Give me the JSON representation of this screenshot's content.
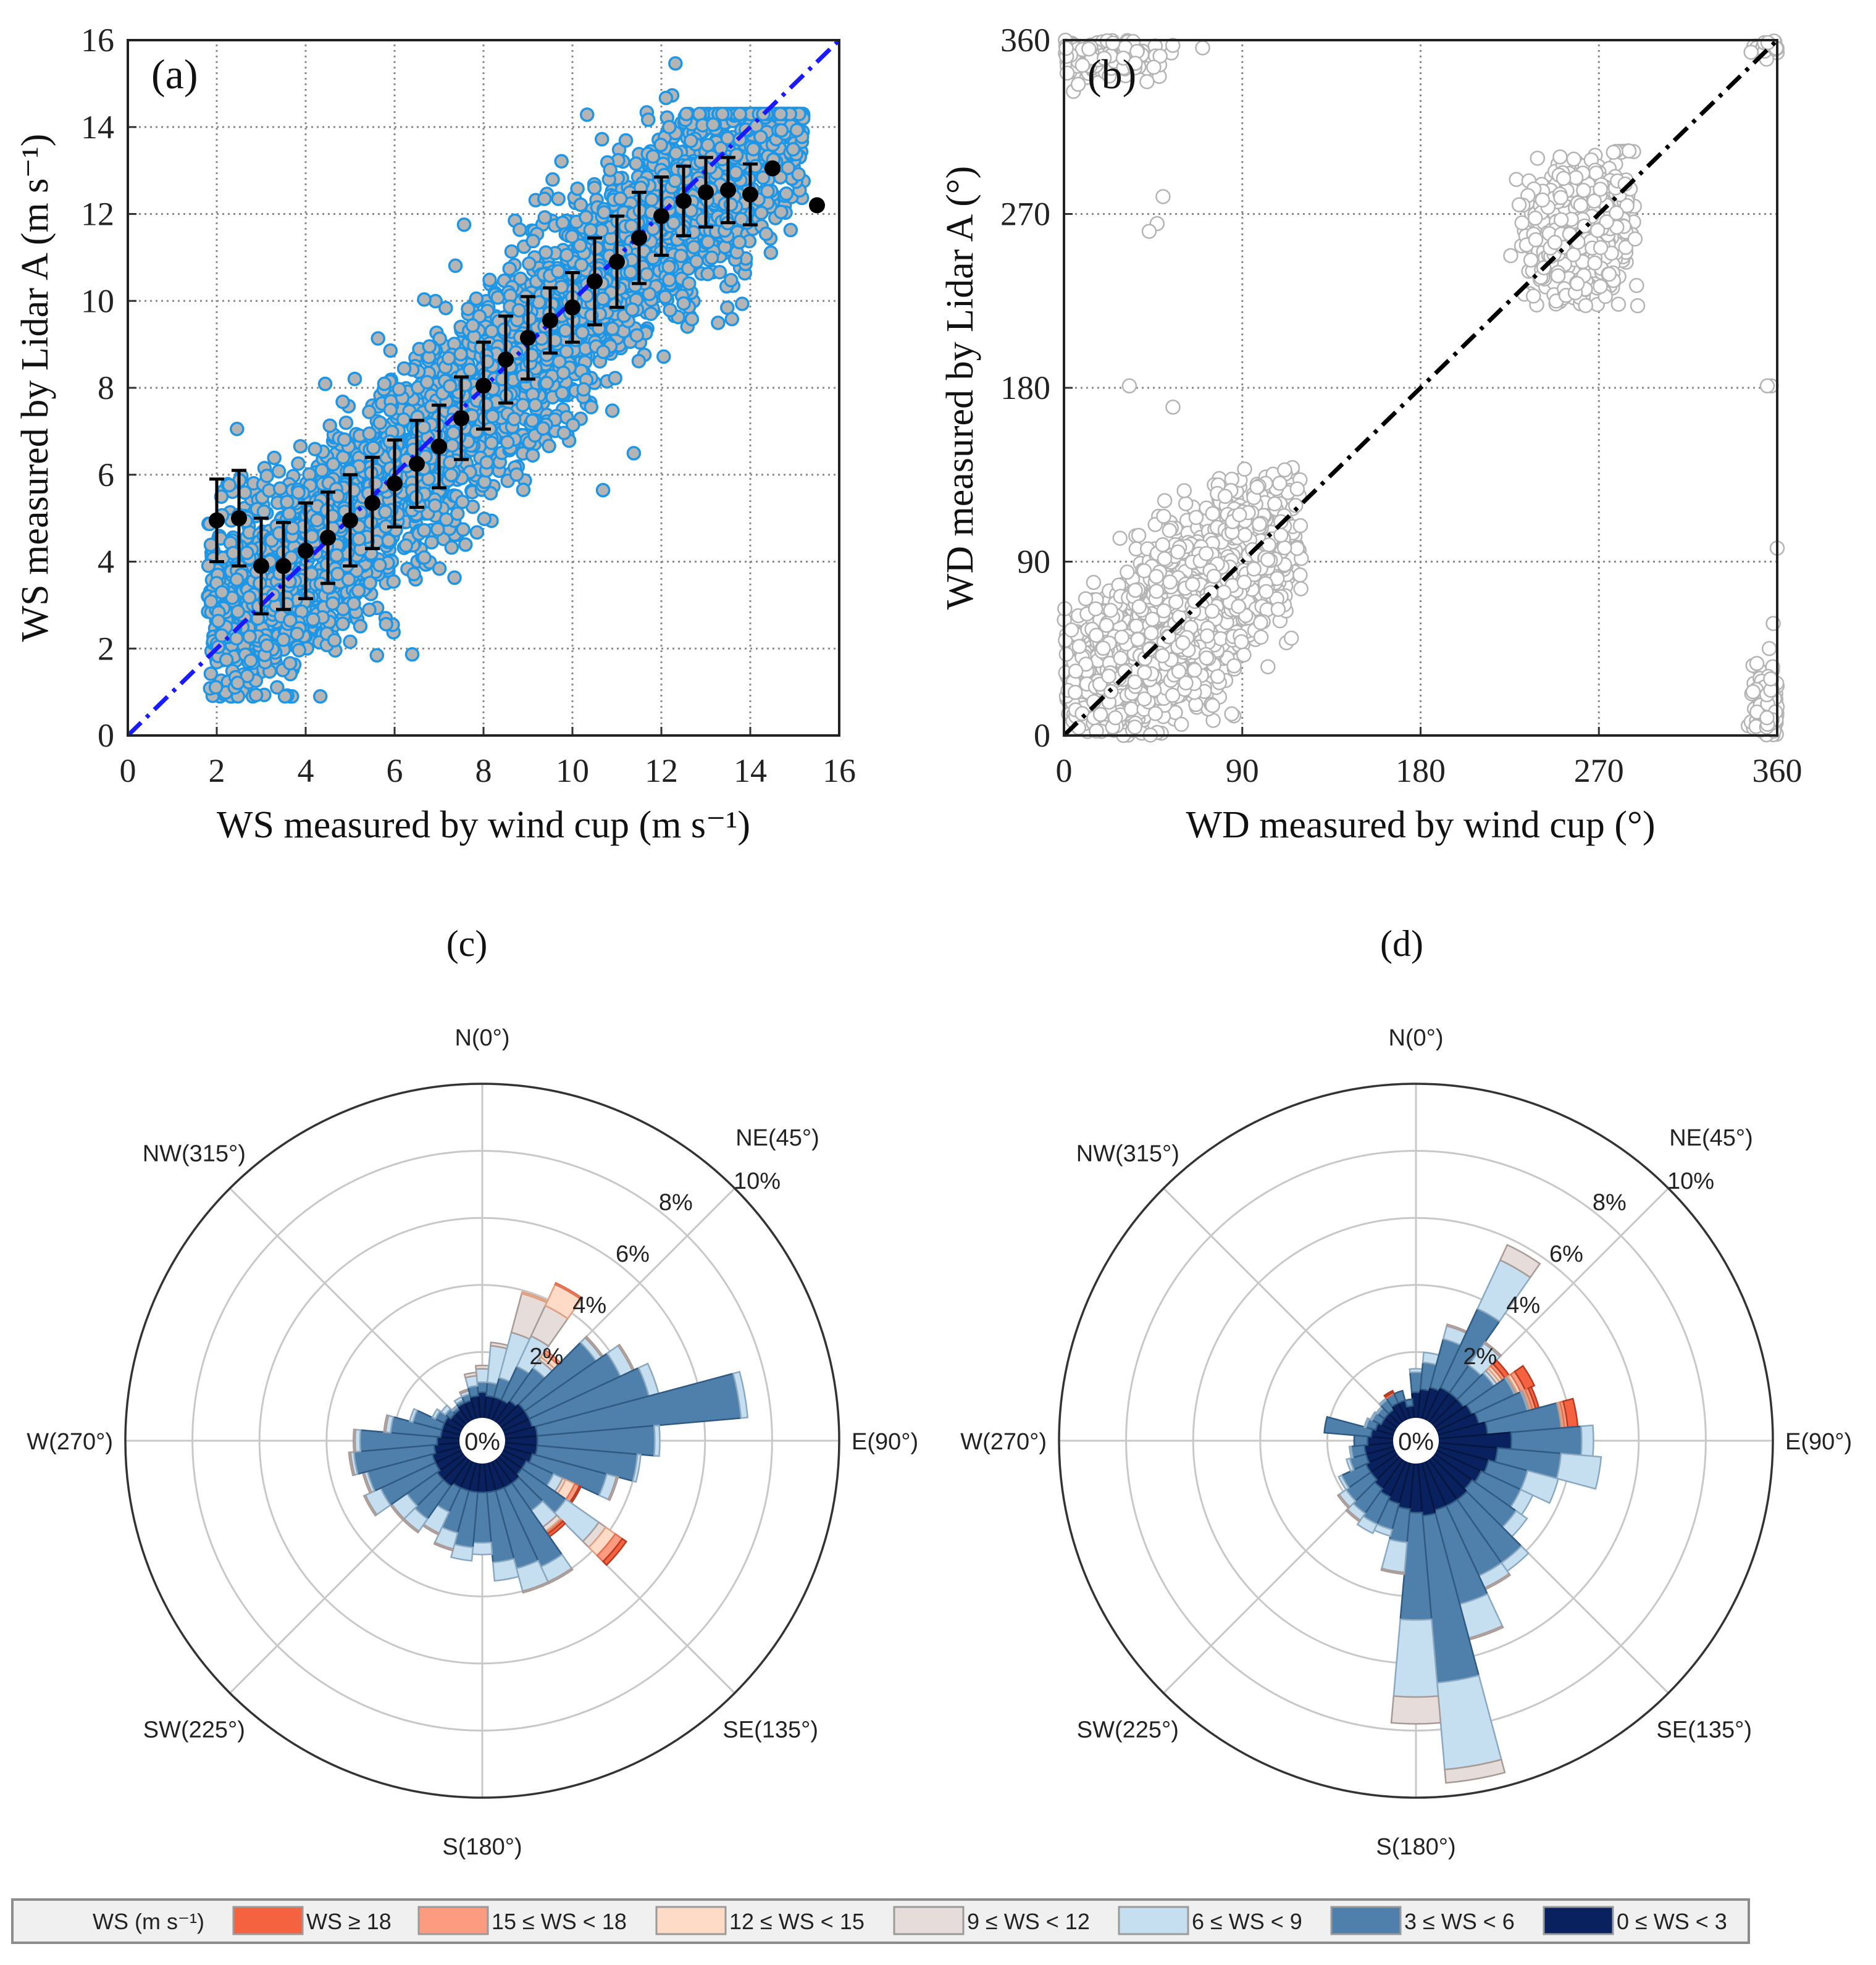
{
  "chart_data": [
    {
      "panel": "(a)",
      "type": "scatter",
      "xlabel": "WS measured by wind cup (m s⁻¹)",
      "ylabel": "WS measured by Lidar A (m s⁻¹)",
      "xlim": [
        0,
        16
      ],
      "ylim": [
        0,
        16
      ],
      "xticks": [
        "0",
        "2",
        "4",
        "6",
        "8",
        "10",
        "12",
        "14",
        "16"
      ],
      "yticks": [
        "0",
        "2",
        "4",
        "6",
        "8",
        "10",
        "12",
        "14",
        "16"
      ],
      "grid": true,
      "reference_line": {
        "name": "1:1 line",
        "x": [
          0,
          16
        ],
        "y": [
          0,
          16
        ],
        "color": "#1a1aff"
      },
      "point_color": {
        "fill": "#b4b4b4",
        "edge": "#1e96e6"
      },
      "cloud": {
        "x_range": [
          1.8,
          15.2
        ],
        "slope": 0.97,
        "intercept": 0.1,
        "y_sd": 1.15,
        "n": 4200
      },
      "binned_means": {
        "x": [
          2,
          2.5,
          3,
          3.5,
          4,
          4.5,
          5,
          5.5,
          6,
          6.5,
          7,
          7.5,
          8,
          8.5,
          9,
          9.5,
          10,
          10.5,
          11,
          11.5,
          12,
          12.5,
          13,
          13.5,
          14,
          14.5,
          15.5
        ],
        "y": [
          4.95,
          5.0,
          3.9,
          3.9,
          4.25,
          4.55,
          4.95,
          5.35,
          5.8,
          6.25,
          6.65,
          7.3,
          8.05,
          8.65,
          9.15,
          9.55,
          9.85,
          10.45,
          10.9,
          11.45,
          11.95,
          12.3,
          12.5,
          12.55,
          12.45,
          13.05,
          12.2
        ],
        "err": [
          0.95,
          1.1,
          1.1,
          1.0,
          1.1,
          1.05,
          1.05,
          1.05,
          1.0,
          1.0,
          0.95,
          0.95,
          1.0,
          1.0,
          0.95,
          0.75,
          0.8,
          1.0,
          1.05,
          1.05,
          0.9,
          0.8,
          0.8,
          0.75,
          0.7,
          0,
          0
        ]
      }
    },
    {
      "panel": "(b)",
      "type": "scatter",
      "xlabel": "WD measured by wind cup (°)",
      "ylabel": "WD measured by Lidar A (°)",
      "xlim": [
        0,
        360
      ],
      "ylim": [
        0,
        360
      ],
      "xticks": [
        "0",
        "90",
        "180",
        "270",
        "360"
      ],
      "yticks": [
        "0",
        "90",
        "180",
        "270",
        "360"
      ],
      "grid": true,
      "reference_line": {
        "name": "1:1 line",
        "x": [
          0,
          360
        ],
        "y": [
          0,
          360
        ],
        "color": "#000000"
      },
      "point_color": {
        "fill": "#ffffff",
        "edge": "#b4b4b4"
      },
      "clusters": [
        {
          "cx": 55,
          "cy": 60,
          "sx": 30,
          "sy": 32,
          "corr": 0.75,
          "n": 2600,
          "xmin": 0,
          "xmax": 120,
          "ymin": 0,
          "ymax": 140
        },
        {
          "cx": 262,
          "cy": 262,
          "sx": 14,
          "sy": 20,
          "corr": 0.2,
          "n": 700,
          "xmin": 225,
          "xmax": 290,
          "ymin": 222,
          "ymax": 305
        },
        {
          "cx": 356,
          "cy": 14,
          "sx": 4,
          "sy": 10,
          "corr": 0,
          "n": 200,
          "xmin": 335,
          "xmax": 360,
          "ymin": 0,
          "ymax": 40
        },
        {
          "cx": 18,
          "cy": 352,
          "sx": 15,
          "sy": 6,
          "corr": 0,
          "n": 200,
          "xmin": 0,
          "xmax": 70,
          "ymin": 330,
          "ymax": 360
        },
        {
          "cx": 356,
          "cy": 357,
          "sx": 4,
          "sy": 3,
          "corr": 0,
          "n": 40,
          "xmin": 340,
          "xmax": 360,
          "ymin": 345,
          "ymax": 360
        }
      ],
      "outliers": [
        [
          33,
          181
        ],
        [
          55,
          170
        ],
        [
          50,
          279
        ],
        [
          47,
          265
        ],
        [
          43,
          261
        ],
        [
          357,
          181
        ],
        [
          355,
          181
        ],
        [
          360,
          97
        ],
        [
          358,
          58
        ],
        [
          356,
          45
        ],
        [
          36,
          348
        ],
        [
          70,
          356
        ]
      ]
    },
    {
      "panel": "(c)",
      "type": "windrose",
      "radial_max": 10,
      "radial_ticks": [
        "2%",
        "4%",
        "6%",
        "8%",
        "10%"
      ],
      "center_label": "0%",
      "direction_labels": [
        {
          "angle": 0,
          "label": "N(0°)"
        },
        {
          "angle": 45,
          "label": "NE(45°)"
        },
        {
          "angle": 90,
          "label": "E(90°)"
        },
        {
          "angle": 135,
          "label": "SE(135°)"
        },
        {
          "angle": 180,
          "label": "S(180°)"
        },
        {
          "angle": 225,
          "label": "SW(225°)"
        },
        {
          "angle": 270,
          "label": "W(270°)"
        },
        {
          "angle": 315,
          "label": "NW(315°)"
        }
      ],
      "sector_width_deg": 10,
      "sectors": [
        0,
        10,
        20,
        30,
        40,
        50,
        60,
        70,
        80,
        90,
        100,
        110,
        120,
        130,
        140,
        150,
        160,
        170,
        180,
        190,
        200,
        210,
        220,
        230,
        240,
        250,
        260,
        270,
        280,
        290,
        300,
        310,
        320,
        330,
        340,
        350
      ],
      "class_order": [
        "0 ≤ WS < 3",
        "3 ≤ WS < 6",
        "6 ≤ WS < 9",
        "9 ≤ WS < 12",
        "12 ≤ WS < 15",
        "15 ≤ WS < 18",
        "WS ≥ 18"
      ],
      "frequency_percent": [
        [
          0.8,
          0.3,
          0.4,
          0.1,
          0,
          0,
          0
        ],
        [
          0.7,
          0.4,
          1.1,
          0.1,
          0,
          0,
          0
        ],
        [
          0.7,
          0.6,
          1.4,
          1.2,
          0.05,
          0,
          0
        ],
        [
          0.7,
          1.1,
          1.0,
          1.0,
          0.7,
          0.05,
          0
        ],
        [
          0.8,
          1.2,
          0.3,
          0.1,
          0.15,
          0.1,
          0
        ],
        [
          0.9,
          2.6,
          0.2,
          0.05,
          0,
          0,
          0
        ],
        [
          0.9,
          3.0,
          0.4,
          0.05,
          0,
          0,
          0
        ],
        [
          0.9,
          3.6,
          0.3,
          0,
          0,
          0,
          0
        ],
        [
          1.0,
          6.1,
          0.2,
          0,
          0,
          0,
          0
        ],
        [
          1.0,
          3.5,
          0.15,
          0,
          0,
          0,
          0
        ],
        [
          1.0,
          3.0,
          0.1,
          0,
          0,
          0,
          0
        ],
        [
          0.9,
          2.3,
          0.3,
          0.05,
          0,
          0,
          0
        ],
        [
          0.8,
          0.9,
          0.3,
          0.1,
          0.3,
          0.15,
          0.05
        ],
        [
          0.8,
          1.6,
          1.2,
          0.25,
          0.35,
          0.25,
          0.15
        ],
        [
          0.9,
          1.0,
          0.6,
          0.15,
          0.05,
          0.05,
          0.1
        ],
        [
          0.9,
          2.6,
          0.5,
          0.05,
          0,
          0,
          0
        ],
        [
          0.9,
          2.4,
          0.7,
          0.05,
          0,
          0,
          0
        ],
        [
          0.9,
          2.1,
          0.55,
          0,
          0,
          0,
          0
        ],
        [
          0.9,
          1.5,
          0.35,
          0,
          0,
          0,
          0
        ],
        [
          0.9,
          1.65,
          0.4,
          0,
          0,
          0,
          0
        ],
        [
          0.9,
          1.3,
          0.5,
          0.05,
          0,
          0,
          0
        ],
        [
          0.9,
          0.8,
          0.7,
          0.05,
          0,
          0,
          0
        ],
        [
          1.0,
          1.2,
          0.45,
          0.05,
          0,
          0,
          0
        ],
        [
          1.0,
          1.1,
          0.55,
          0.05,
          0,
          0,
          0
        ],
        [
          0.9,
          1.8,
          0.5,
          0.05,
          0,
          0,
          0
        ],
        [
          0.9,
          2.0,
          0.1,
          0.05,
          0,
          0,
          0
        ],
        [
          0.8,
          2.4,
          0.1,
          0.05,
          0,
          0,
          0
        ],
        [
          0.7,
          2.3,
          0.15,
          0.05,
          0,
          0,
          0
        ],
        [
          0.6,
          1.5,
          0.15,
          0.05,
          0,
          0,
          0
        ],
        [
          0.6,
          0.9,
          0.1,
          0,
          0,
          0,
          0
        ],
        [
          0.6,
          0.3,
          0.1,
          0,
          0,
          0,
          0
        ],
        [
          0.5,
          0.2,
          0.15,
          0,
          0,
          0,
          0
        ],
        [
          0.5,
          0.1,
          0.05,
          0,
          0,
          0,
          0
        ],
        [
          0.6,
          0.1,
          0.1,
          0,
          0,
          0,
          0
        ],
        [
          0.6,
          0.2,
          0.1,
          0.05,
          0,
          0,
          0
        ],
        [
          0.7,
          0.3,
          0.3,
          0.1,
          0,
          0,
          0
        ]
      ]
    },
    {
      "panel": "(d)",
      "type": "windrose",
      "radial_max": 10,
      "radial_ticks": [
        "2%",
        "4%",
        "6%",
        "8%",
        "10%"
      ],
      "center_label": "0%",
      "direction_labels": [
        {
          "angle": 0,
          "label": "N(0°)"
        },
        {
          "angle": 45,
          "label": "NE(45°)"
        },
        {
          "angle": 90,
          "label": "E(90°)"
        },
        {
          "angle": 135,
          "label": "SE(135°)"
        },
        {
          "angle": 180,
          "label": "S(180°)"
        },
        {
          "angle": 225,
          "label": "SW(225°)"
        },
        {
          "angle": 270,
          "label": "W(270°)"
        },
        {
          "angle": 315,
          "label": "NW(315°)"
        }
      ],
      "sector_width_deg": 10,
      "sectors": [
        0,
        10,
        20,
        30,
        40,
        50,
        60,
        70,
        80,
        90,
        100,
        110,
        120,
        130,
        140,
        150,
        160,
        170,
        180,
        190,
        200,
        210,
        220,
        230,
        240,
        250,
        260,
        270,
        280,
        290,
        300,
        310,
        320,
        330,
        340,
        350
      ],
      "class_order": [
        "0 ≤ WS < 3",
        "3 ≤ WS < 6",
        "6 ≤ WS < 9",
        "9 ≤ WS < 12",
        "12 ≤ WS < 15",
        "15 ≤ WS < 18",
        "WS ≥ 18"
      ],
      "frequency_percent": [
        [
          0.8,
          0.6,
          0.1,
          0,
          0,
          0,
          0
        ],
        [
          0.9,
          0.8,
          0.3,
          0,
          0,
          0,
          0
        ],
        [
          1.0,
          1.5,
          0.4,
          0.05,
          0,
          0,
          0
        ],
        [
          1.1,
          2.6,
          1.6,
          0.5,
          0,
          0,
          0
        ],
        [
          1.1,
          1.0,
          0.8,
          0.05,
          0,
          0,
          0
        ],
        [
          1.1,
          1.1,
          0.1,
          0.1,
          0.1,
          0.1,
          0.15
        ],
        [
          1.2,
          1.4,
          0.05,
          0.05,
          0.1,
          0.15,
          0.3
        ],
        [
          1.3,
          1.5,
          0.05,
          0.05,
          0.05,
          0.1,
          0.1
        ],
        [
          1.5,
          2.2,
          0,
          0.05,
          0.05,
          0.1,
          0.3
        ],
        [
          2.2,
          2.1,
          0.35,
          0,
          0,
          0,
          0
        ],
        [
          1.8,
          1.9,
          1.2,
          0,
          0,
          0,
          0
        ],
        [
          1.6,
          1.2,
          0.95,
          0,
          0,
          0,
          0
        ],
        [
          1.5,
          1.3,
          0.4,
          0,
          0,
          0,
          0
        ],
        [
          1.4,
          1.6,
          0.4,
          0,
          0,
          0,
          0
        ],
        [
          1.5,
          2.3,
          0.3,
          0,
          0,
          0,
          0
        ],
        [
          1.5,
          2.3,
          0.4,
          0.05,
          0,
          0,
          0
        ],
        [
          1.5,
          2.9,
          1.05,
          0.05,
          0,
          0,
          0
        ],
        [
          1.6,
          5.0,
          2.6,
          0.4,
          0,
          0,
          0
        ],
        [
          1.5,
          3.2,
          2.3,
          0.8,
          0,
          0,
          0
        ],
        [
          1.4,
          1.0,
          0.9,
          0.05,
          0,
          0,
          0
        ],
        [
          1.3,
          0.8,
          0.2,
          0,
          0,
          0,
          0
        ],
        [
          1.2,
          0.9,
          0.3,
          0,
          0,
          0,
          0
        ],
        [
          1.1,
          0.9,
          0.25,
          0.05,
          0,
          0,
          0
        ],
        [
          1.0,
          0.9,
          0.25,
          0.05,
          0,
          0,
          0
        ],
        [
          1.0,
          0.8,
          0.1,
          0,
          0,
          0,
          0
        ],
        [
          0.9,
          0.5,
          0.1,
          0,
          0,
          0,
          0
        ],
        [
          0.9,
          0.4,
          0.05,
          0,
          0,
          0,
          0
        ],
        [
          0.8,
          0.4,
          0,
          0,
          0,
          0,
          0
        ],
        [
          0.7,
          1.4,
          0,
          0,
          0,
          0,
          0
        ],
        [
          0.6,
          0.3,
          0.05,
          0,
          0,
          0,
          0
        ],
        [
          0.5,
          0.3,
          0.05,
          0,
          0,
          0,
          0
        ],
        [
          0.5,
          0.25,
          0.05,
          0,
          0,
          0,
          0
        ],
        [
          0.5,
          0.35,
          0.05,
          0,
          0,
          0,
          0
        ],
        [
          0.6,
          0.3,
          0,
          0,
          0,
          0.05,
          0.05
        ],
        [
          0.6,
          0.3,
          0,
          0,
          0,
          0,
          0
        ],
        [
          0.4,
          0.2,
          0,
          0,
          0,
          0,
          0
        ]
      ]
    }
  ],
  "legend": {
    "title": "WS (m s⁻¹)",
    "items": [
      {
        "label": "WS ≥ 18",
        "color": "#f4623f"
      },
      {
        "label": "15 ≤ WS < 18",
        "color": "#fc9b80"
      },
      {
        "label": "12 ≤ WS < 15",
        "color": "#fddbc7"
      },
      {
        "label": "9 ≤ WS < 12",
        "color": "#e6dcd9"
      },
      {
        "label": "6 ≤ WS < 9",
        "color": "#c6dff0"
      },
      {
        "label": "3 ≤ WS < 6",
        "color": "#4f7fab"
      },
      {
        "label": "0 ≤ WS < 3",
        "color": "#0a2160"
      }
    ]
  },
  "class_colors": [
    "#0a2160",
    "#4f7fab",
    "#c6dff0",
    "#e6dcd9",
    "#fddbc7",
    "#fc9b80",
    "#f4623f"
  ]
}
